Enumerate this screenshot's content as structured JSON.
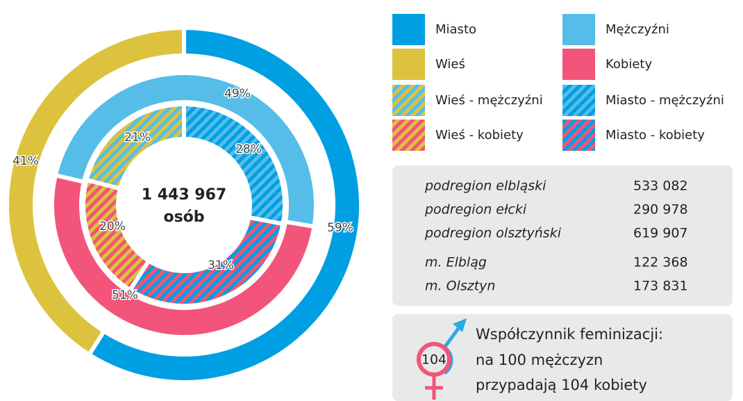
{
  "chart_data": {
    "type": "donut",
    "center_label": [
      "1 443 967",
      "osób"
    ],
    "rings": [
      {
        "categories": [
          "Miasto",
          "Wieś"
        ],
        "values": [
          59,
          41
        ],
        "value_labels": [
          "59%",
          "41%"
        ],
        "colors": [
          "#009fe3",
          "#dcc23d"
        ]
      },
      {
        "categories": [
          "Mężczyźni",
          "Kobiety"
        ],
        "values": [
          49,
          51
        ],
        "value_labels": [
          "49%",
          "51%"
        ],
        "colors": [
          "#56bde9",
          "#f2547a"
        ]
      },
      {
        "categories": [
          "Miasto - mężczyźni",
          "Miasto - kobiety",
          "Wieś - kobiety",
          "Wieś - mężczyźni"
        ],
        "values": [
          28,
          31,
          20,
          21
        ],
        "value_labels": [
          "28%",
          "31%",
          "20%",
          "21%"
        ],
        "colors": [
          [
            "#009fe3",
            "#56bde9"
          ],
          [
            "#009fe3",
            "#f2547a"
          ],
          [
            "#dcc23d",
            "#f2547a"
          ],
          [
            "#dcc23d",
            "#56bde9"
          ]
        ]
      }
    ]
  },
  "table": {
    "rows": [
      [
        "podregion elbląski",
        "533 082"
      ],
      [
        "podregion ełcki",
        "290 978"
      ],
      [
        "podregion olsztyński",
        "619 907"
      ],
      [
        "m. Elbląg",
        "122 368"
      ],
      [
        "m. Olsztyn",
        "173 831"
      ]
    ]
  },
  "feminization": {
    "symbol": "104",
    "title": "Współczynnik feminizacji:",
    "lines": [
      "na 100 mężczyzn",
      "przypadają 104 kobiety"
    ]
  }
}
